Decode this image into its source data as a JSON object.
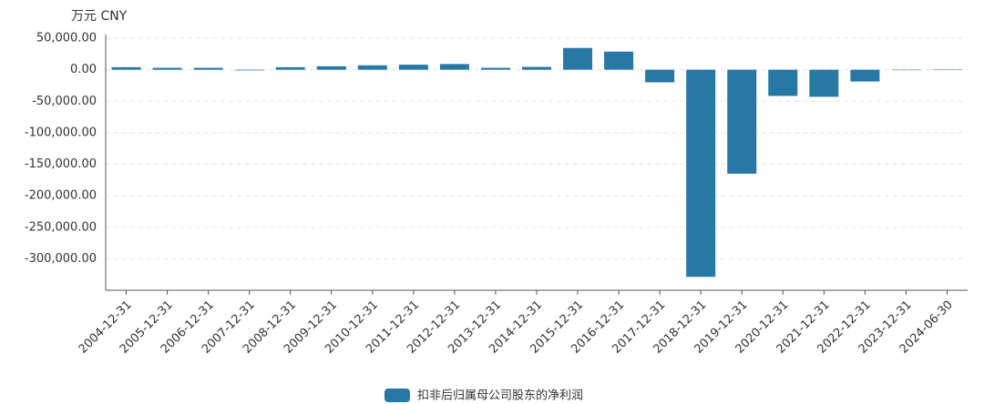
{
  "chart_data": {
    "type": "bar",
    "y_unit": "万元  CNY",
    "categories": [
      "2004-12-31",
      "2005-12-31",
      "2006-12-31",
      "2007-12-31",
      "2008-12-31",
      "2009-12-31",
      "2010-12-31",
      "2011-12-31",
      "2012-12-31",
      "2013-12-31",
      "2014-12-31",
      "2015-12-31",
      "2016-12-31",
      "2017-12-31",
      "2018-12-31",
      "2019-12-31",
      "2020-12-31",
      "2021-12-31",
      "2022-12-31",
      "2023-12-31",
      "2024-06-30"
    ],
    "series": [
      {
        "name": "扣非后归属母公司股东的净利润",
        "color": "#2878a6",
        "values": [
          4000,
          3000,
          3000,
          -1000,
          4000,
          5500,
          7000,
          8000,
          9000,
          3000,
          4500,
          34500,
          28700,
          -20000,
          -328700,
          -165000,
          -41600,
          -43000,
          -18700,
          -500,
          200
        ]
      }
    ],
    "ylim": [
      -350000,
      50000
    ],
    "yticks": [
      {
        "value": 50000,
        "label": "50,000.00"
      },
      {
        "value": 0,
        "label": "0.00"
      },
      {
        "value": -50000,
        "label": "-50,000.00"
      },
      {
        "value": -100000,
        "label": "-100,000.00"
      },
      {
        "value": -150000,
        "label": "-150,000.00"
      },
      {
        "value": -200000,
        "label": "-200,000.00"
      },
      {
        "value": -250000,
        "label": "-250,000.00"
      },
      {
        "value": -300000,
        "label": "-300,000.00"
      }
    ],
    "grid": true
  }
}
